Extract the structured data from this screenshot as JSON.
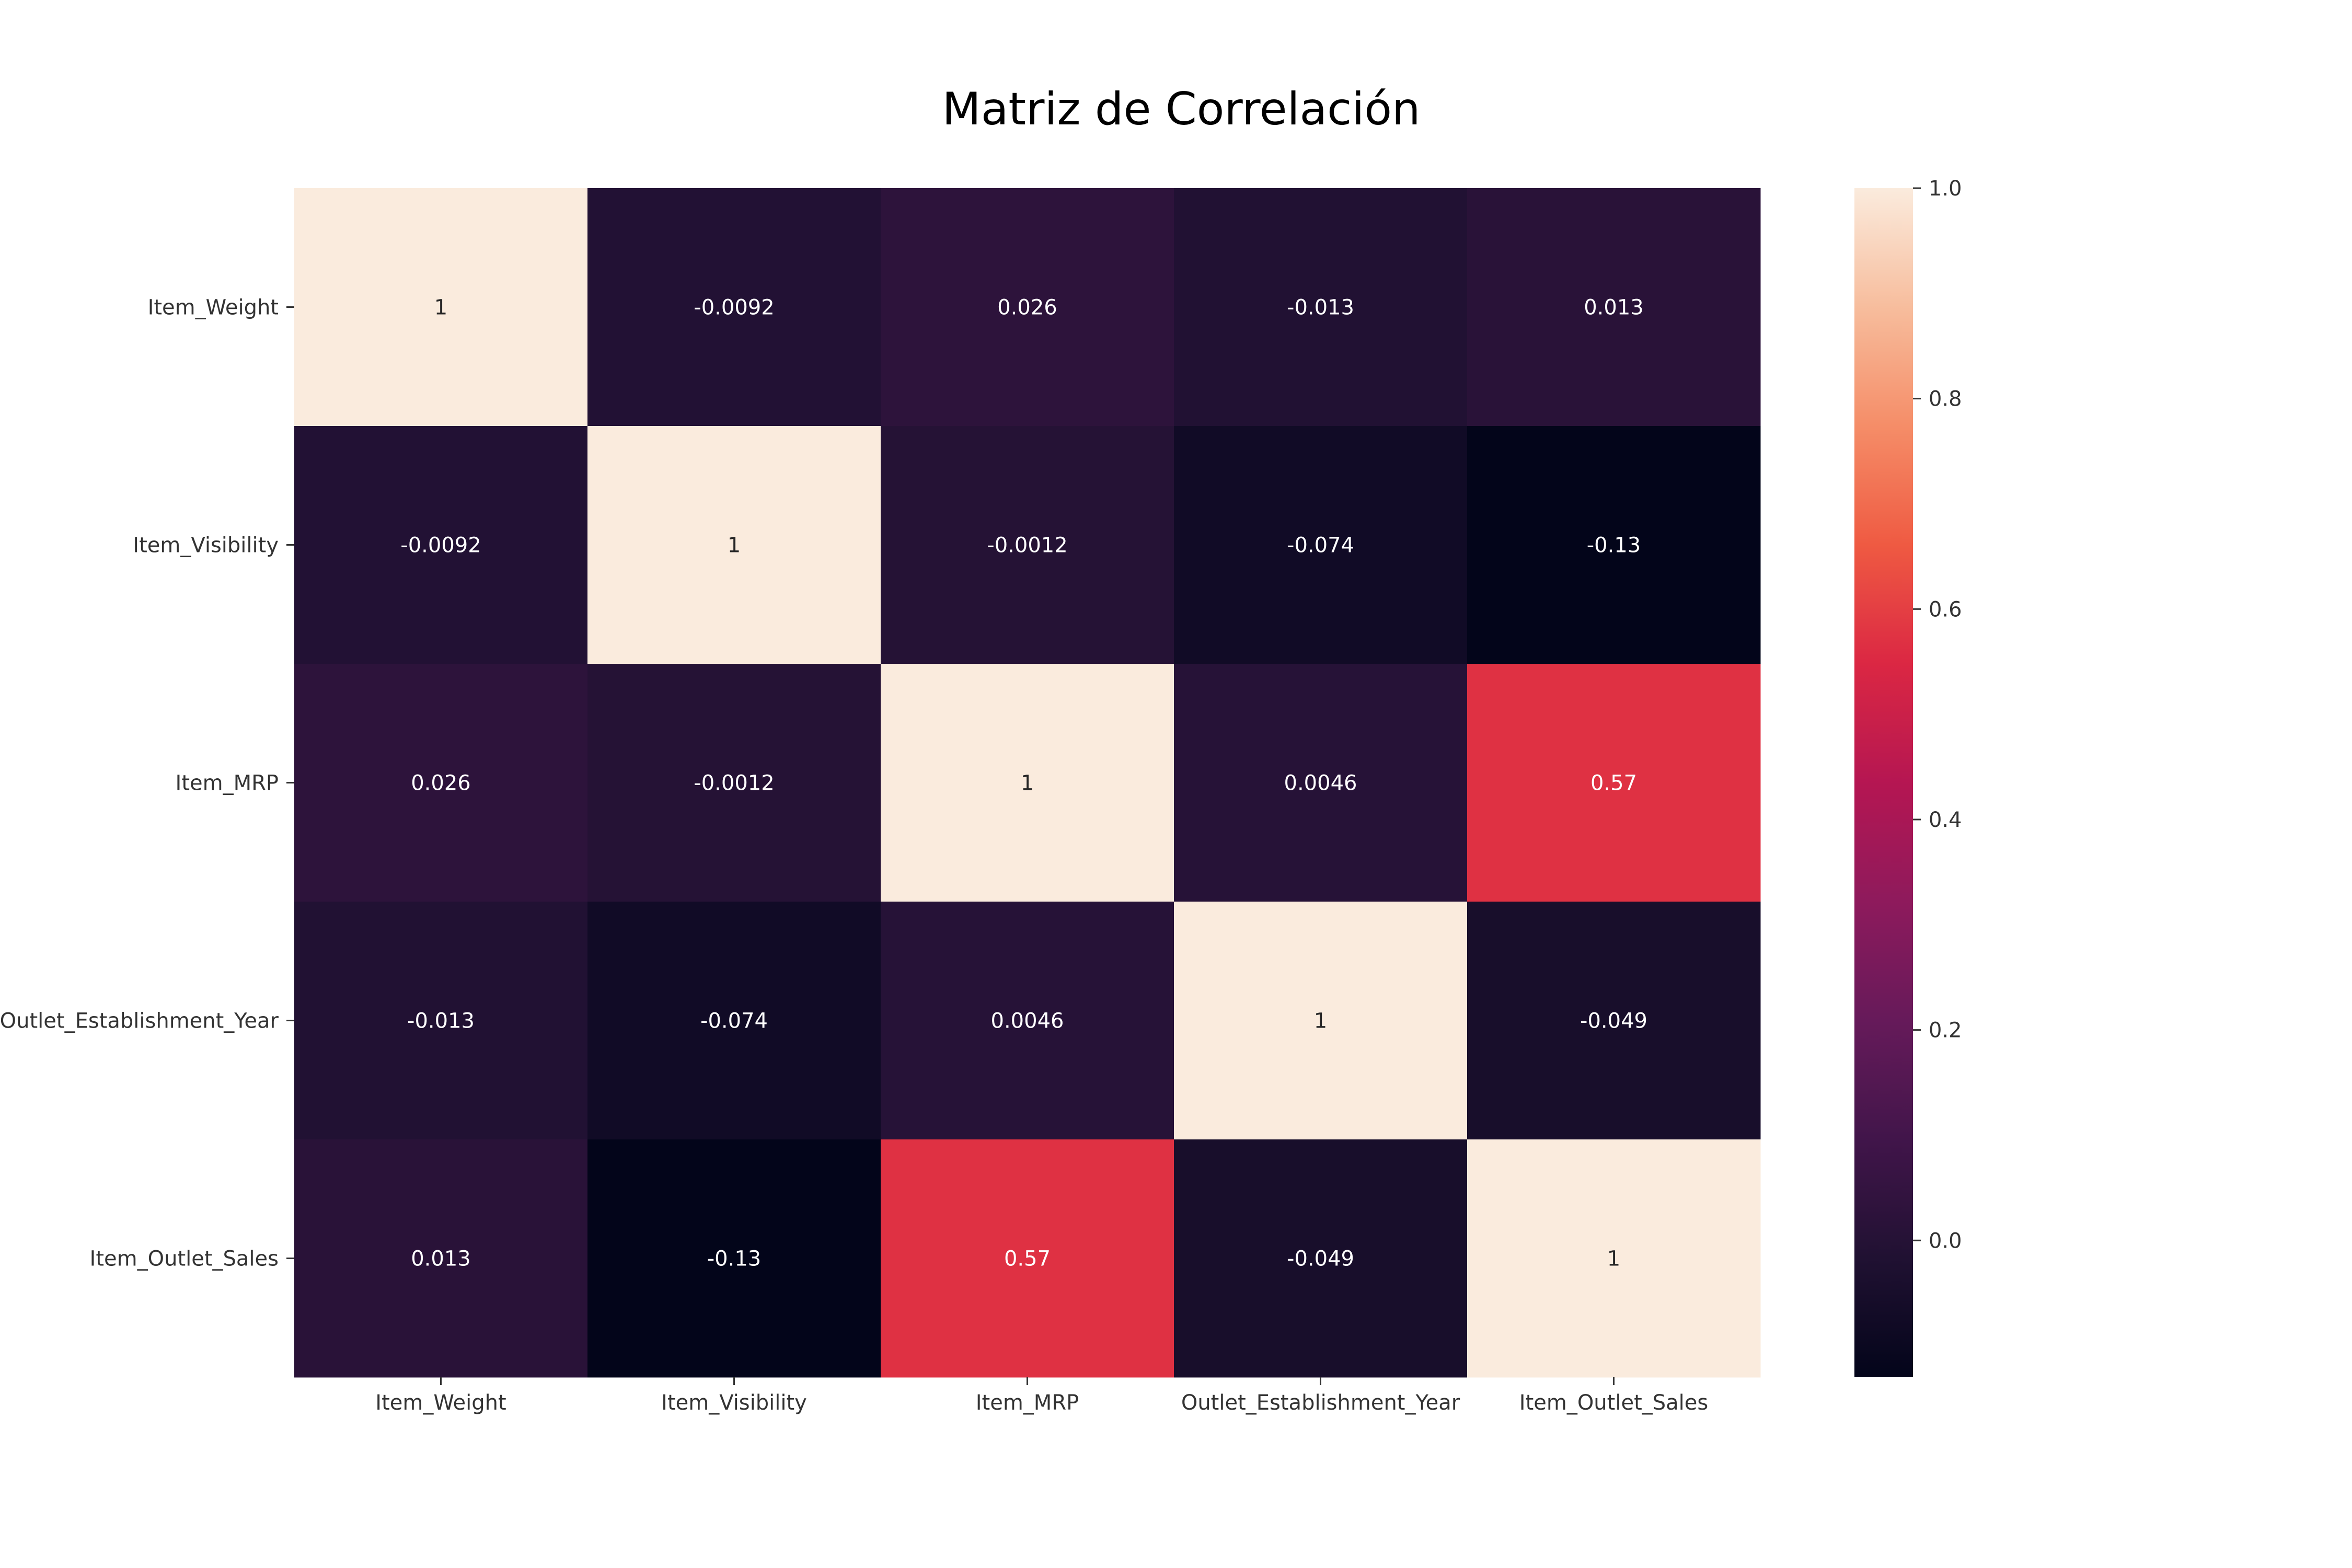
{
  "chart_data": {
    "type": "heatmap",
    "title": "Matriz de Correlación",
    "xlabel": "",
    "ylabel": "",
    "row_labels": [
      "Item_Weight",
      "Item_Visibility",
      "Item_MRP",
      "Outlet_Establishment_Year",
      "Item_Outlet_Sales"
    ],
    "col_labels": [
      "Item_Weight",
      "Item_Visibility",
      "Item_MRP",
      "Outlet_Establishment_Year",
      "Item_Outlet_Sales"
    ],
    "values": [
      [
        1,
        -0.0092,
        0.026,
        -0.013,
        0.013
      ],
      [
        -0.0092,
        1,
        -0.0012,
        -0.074,
        -0.13
      ],
      [
        0.026,
        -0.0012,
        1,
        0.0046,
        0.57
      ],
      [
        -0.013,
        -0.074,
        0.0046,
        1,
        -0.049
      ],
      [
        0.013,
        -0.13,
        0.57,
        -0.049,
        1
      ]
    ],
    "annotations": [
      [
        "1",
        "-0.0092",
        "0.026",
        "-0.013",
        "0.013"
      ],
      [
        "-0.0092",
        "1",
        "-0.0012",
        "-0.074",
        "-0.13"
      ],
      [
        "0.026",
        "-0.0012",
        "1",
        "0.0046",
        "0.57"
      ],
      [
        "-0.013",
        "-0.074",
        "0.0046",
        "1",
        "-0.049"
      ],
      [
        "0.013",
        "-0.13",
        "0.57",
        "-0.049",
        "1"
      ]
    ],
    "colorbar": {
      "vmin": -0.13,
      "vmax": 1.0,
      "ticks": [
        0.0,
        0.2,
        0.4,
        0.6,
        0.8,
        1.0
      ],
      "tick_labels": [
        "0.0",
        "0.2",
        "0.4",
        "0.6",
        "0.8",
        "1.0"
      ],
      "colormap": "rocket"
    }
  }
}
